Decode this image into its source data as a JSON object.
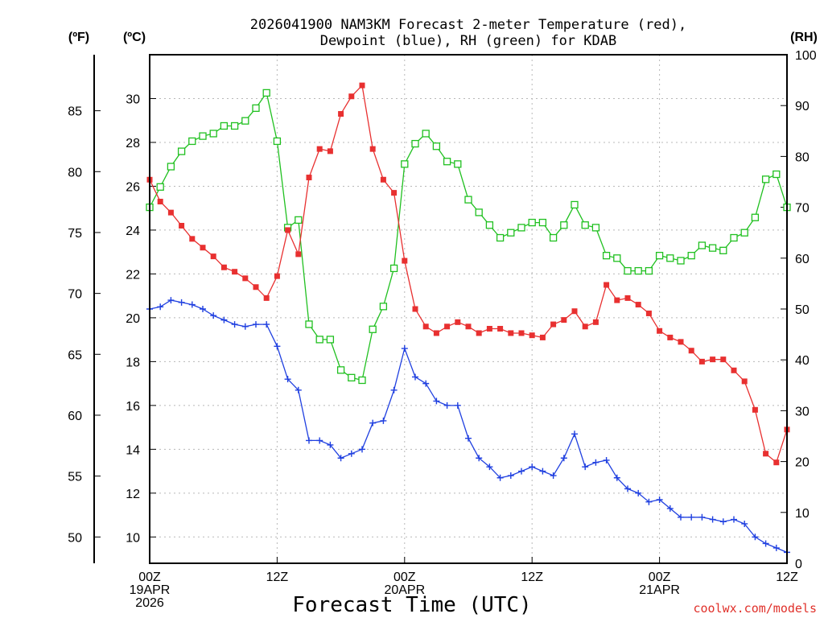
{
  "chart_data": {
    "type": "line",
    "title_line1": "2026041900 NAM3KM Forecast 2-meter Temperature (red),",
    "title_line2": "Dewpoint (blue), RH (green) for KDAB",
    "xlabel": "Forecast Time (UTC)",
    "credit": "coolwx.com/models",
    "units": {
      "fahrenheit": "(ºF)",
      "celsius": "(ºC)",
      "rh": "(RH)"
    },
    "x_range_hours": [
      0,
      60
    ],
    "c_range": [
      8.8,
      32.0
    ],
    "rh_range": [
      0,
      100
    ],
    "f_ticks": [
      50,
      55,
      60,
      65,
      70,
      75,
      80,
      85
    ],
    "c_ticks": [
      10,
      12,
      14,
      16,
      18,
      20,
      22,
      24,
      26,
      28,
      30
    ],
    "rh_ticks": [
      0,
      10,
      20,
      30,
      40,
      50,
      60,
      70,
      80,
      90,
      100
    ],
    "x_ticks": [
      {
        "hour": 0,
        "lines": [
          "00Z",
          "19APR",
          "2026"
        ]
      },
      {
        "hour": 12,
        "lines": [
          "12Z"
        ]
      },
      {
        "hour": 24,
        "lines": [
          "00Z",
          "20APR"
        ]
      },
      {
        "hour": 36,
        "lines": [
          "12Z"
        ]
      },
      {
        "hour": 48,
        "lines": [
          "00Z",
          "21APR"
        ]
      },
      {
        "hour": 60,
        "lines": [
          "12Z"
        ]
      }
    ],
    "series": [
      {
        "name": "Temperature",
        "unit": "C",
        "color": "#e83030",
        "marker": "filled-square",
        "values": [
          26.3,
          25.3,
          24.8,
          24.2,
          23.6,
          23.2,
          22.8,
          22.3,
          22.1,
          21.8,
          21.4,
          20.9,
          21.9,
          24.0,
          22.9,
          26.4,
          27.7,
          27.6,
          29.3,
          30.1,
          30.6,
          27.7,
          26.3,
          25.7,
          22.6,
          20.4,
          19.6,
          19.3,
          19.6,
          19.8,
          19.6,
          19.3,
          19.5,
          19.5,
          19.3,
          19.3,
          19.2,
          19.1,
          19.7,
          19.9,
          20.3,
          19.6,
          19.8,
          21.5,
          20.8,
          20.9,
          20.6,
          20.2,
          19.4,
          19.1,
          18.9,
          18.5,
          18.0,
          18.1,
          18.1,
          17.6,
          17.1,
          15.8,
          13.8,
          13.4,
          14.9
        ]
      },
      {
        "name": "Dewpoint",
        "unit": "C",
        "color": "#2040e0",
        "marker": "plus",
        "values": [
          20.4,
          20.5,
          20.8,
          20.7,
          20.6,
          20.4,
          20.1,
          19.9,
          19.7,
          19.6,
          19.7,
          19.7,
          18.7,
          17.2,
          16.7,
          14.4,
          14.4,
          14.2,
          13.6,
          13.8,
          14.0,
          15.2,
          15.3,
          16.7,
          18.6,
          17.3,
          17.0,
          16.2,
          16.0,
          16.0,
          14.5,
          13.6,
          13.2,
          12.7,
          12.8,
          13.0,
          13.2,
          13.0,
          12.8,
          13.6,
          14.7,
          13.2,
          13.4,
          13.5,
          12.7,
          12.2,
          12.0,
          11.6,
          11.7,
          11.3,
          10.9,
          10.9,
          10.9,
          10.8,
          10.7,
          10.8,
          10.6,
          10.0,
          9.7,
          9.5,
          9.3
        ]
      },
      {
        "name": "RH",
        "unit": "%",
        "color": "#20c020",
        "marker": "open-square",
        "values": [
          70,
          74,
          78,
          81,
          83,
          84,
          84.5,
          86,
          86,
          87,
          89.5,
          92.5,
          83,
          66,
          67.5,
          47,
          44,
          44,
          38,
          36.5,
          36,
          46,
          50.5,
          58,
          78.5,
          82.5,
          84.5,
          82,
          79,
          78.5,
          71.5,
          69,
          66.5,
          64,
          65,
          66,
          67,
          67,
          64,
          66.5,
          70.5,
          66.5,
          66,
          60.5,
          60,
          57.5,
          57.5,
          57.5,
          60.5,
          60,
          59.5,
          60.5,
          62.5,
          62,
          61.5,
          64,
          65,
          68,
          75.5,
          76.5,
          70
        ]
      }
    ]
  }
}
